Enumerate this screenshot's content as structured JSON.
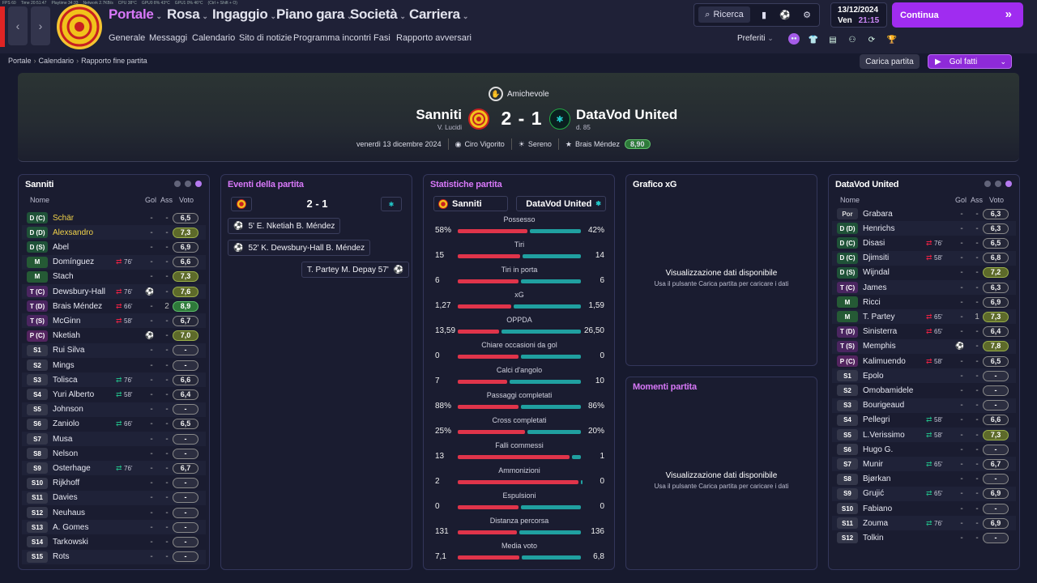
{
  "system": {
    "fps": "FPS 60",
    "time": "Time 20:51:47",
    "playtime": "Playtime 34:33",
    "network": "Network 2.7KB/s",
    "cpu": "CPU 38°C",
    "gpu": "GPU0 8% 43°C",
    "gpu1": "GPU1 0% 46°C",
    "hint": "(Ctrl + Shift + O)"
  },
  "nav": {
    "main": [
      {
        "label": "Portale",
        "active": true
      },
      {
        "label": "Rosa"
      },
      {
        "label": "Ingaggio"
      },
      {
        "label": "Piano gara"
      },
      {
        "label": "Società"
      },
      {
        "label": "Carriera"
      }
    ],
    "sub": [
      "Generale",
      "Messaggi",
      "Calendario",
      "Sito di notizie",
      "Programma incontri",
      "Fasi",
      "Rapporto avversari"
    ],
    "search": "Ricerca",
    "date": "13/12/2024",
    "day": "Ven",
    "clock": "21:15",
    "continue": "Continua",
    "preferiti": "Preferiti"
  },
  "breadcrumb": [
    "Portale",
    "Calendario",
    "Rapporto fine partita"
  ],
  "actions": {
    "carica": "Carica partita",
    "golfatti": "Gol fatti"
  },
  "match": {
    "competition": "Amichevole",
    "home": "Sanniti",
    "home_manager": "V. Lucidi",
    "away": "DataVod United",
    "away_manager": "d. 85",
    "score": "2 - 1",
    "date": "venerdì 13 dicembre 2024",
    "referee": "Ciro Vigorito",
    "weather": "Sereno",
    "motm": "Brais Méndez",
    "motm_rating": "8,90"
  },
  "home_panel": {
    "title": "Sanniti",
    "cols": {
      "name": "Nome",
      "goals": "Gol",
      "assists": "Ass",
      "rating": "Voto"
    },
    "rows": [
      {
        "pos": "D (C)",
        "cls": "d",
        "name": "Schär",
        "y": true,
        "g": "-",
        "a": "-",
        "r": "6,5",
        "rc": "n"
      },
      {
        "pos": "D (D)",
        "cls": "d",
        "name": "Alexsandro",
        "y": true,
        "g": "-",
        "a": "-",
        "r": "7,3",
        "rc": "l"
      },
      {
        "pos": "D (S)",
        "cls": "d",
        "name": "Abel",
        "g": "-",
        "a": "-",
        "r": "6,9",
        "rc": "n"
      },
      {
        "pos": "M",
        "cls": "m",
        "name": "Domínguez",
        "sub": "76'",
        "sd": "out",
        "g": "-",
        "a": "-",
        "r": "6,6",
        "rc": "n"
      },
      {
        "pos": "M",
        "cls": "m",
        "name": "Stach",
        "g": "-",
        "a": "-",
        "r": "7,3",
        "rc": "l"
      },
      {
        "pos": "T (C)",
        "cls": "t",
        "name": "Dewsbury-Hall",
        "sub": "76'",
        "sd": "out",
        "goal": true,
        "a": "-",
        "r": "7,6",
        "rc": "l"
      },
      {
        "pos": "T (D)",
        "cls": "t",
        "name": "Brais Méndez",
        "sub": "66'",
        "sd": "out",
        "g": "-",
        "a": "2",
        "r": "8,9",
        "rc": "h"
      },
      {
        "pos": "T (S)",
        "cls": "t",
        "name": "McGinn",
        "sub": "58'",
        "sd": "out",
        "g": "-",
        "a": "-",
        "r": "6,7",
        "rc": "n"
      },
      {
        "pos": "P (C)",
        "cls": "p",
        "name": "Nketiah",
        "goal": true,
        "a": "-",
        "r": "7,0",
        "rc": "l"
      },
      {
        "pos": "S1",
        "cls": "s",
        "name": "Rui Silva",
        "g": "-",
        "a": "-",
        "r": "-",
        "rc": "e"
      },
      {
        "pos": "S2",
        "cls": "s",
        "name": "Mings",
        "g": "-",
        "a": "-",
        "r": "-",
        "rc": "e"
      },
      {
        "pos": "S3",
        "cls": "s",
        "name": "Tolisca",
        "sub": "76'",
        "sd": "in",
        "g": "-",
        "a": "-",
        "r": "6,6",
        "rc": "n"
      },
      {
        "pos": "S4",
        "cls": "s",
        "name": "Yuri Alberto",
        "sub": "58'",
        "sd": "in",
        "g": "-",
        "a": "-",
        "r": "6,4",
        "rc": "n"
      },
      {
        "pos": "S5",
        "cls": "s",
        "name": "Johnson",
        "g": "-",
        "a": "-",
        "r": "-",
        "rc": "e"
      },
      {
        "pos": "S6",
        "cls": "s",
        "name": "Zaniolo",
        "sub": "66'",
        "sd": "in",
        "g": "-",
        "a": "-",
        "r": "6,5",
        "rc": "n"
      },
      {
        "pos": "S7",
        "cls": "s",
        "name": "Musa",
        "g": "-",
        "a": "-",
        "r": "-",
        "rc": "e"
      },
      {
        "pos": "S8",
        "cls": "s",
        "name": "Nelson",
        "g": "-",
        "a": "-",
        "r": "-",
        "rc": "e"
      },
      {
        "pos": "S9",
        "cls": "s",
        "name": "Osterhage",
        "sub": "76'",
        "sd": "in",
        "g": "-",
        "a": "-",
        "r": "6,7",
        "rc": "n"
      },
      {
        "pos": "S10",
        "cls": "s",
        "name": "Rijkhoff",
        "g": "-",
        "a": "-",
        "r": "-",
        "rc": "e"
      },
      {
        "pos": "S11",
        "cls": "s",
        "name": "Davies",
        "g": "-",
        "a": "-",
        "r": "-",
        "rc": "e"
      },
      {
        "pos": "S12",
        "cls": "s",
        "name": "Neuhaus",
        "g": "-",
        "a": "-",
        "r": "-",
        "rc": "e"
      },
      {
        "pos": "S13",
        "cls": "s",
        "name": "A. Gomes",
        "g": "-",
        "a": "-",
        "r": "-",
        "rc": "e"
      },
      {
        "pos": "S14",
        "cls": "s",
        "name": "Tarkowski",
        "g": "-",
        "a": "-",
        "r": "-",
        "rc": "e"
      },
      {
        "pos": "S15",
        "cls": "s",
        "name": "Rots",
        "g": "-",
        "a": "-",
        "r": "-",
        "rc": "e"
      }
    ]
  },
  "events": {
    "title": "Eventi della partita",
    "score": "2 - 1",
    "items": [
      {
        "side": "home",
        "text": "5' E. Nketiah B. Méndez"
      },
      {
        "side": "home",
        "text": "52' K. Dewsbury-Hall B. Méndez"
      },
      {
        "side": "away",
        "text": "T. Partey M. Depay 57'"
      }
    ]
  },
  "stats": {
    "title": "Statistiche partita",
    "home": "Sanniti",
    "away": "DataVod United",
    "rows": [
      {
        "label": "Possesso",
        "h": "58%",
        "a": "42%",
        "hv": 58,
        "av": 42
      },
      {
        "label": "Tiri",
        "h": "15",
        "a": "14",
        "hv": 15,
        "av": 14
      },
      {
        "label": "Tiri in porta",
        "h": "6",
        "a": "6",
        "hv": 6,
        "av": 6
      },
      {
        "label": "xG",
        "h": "1,27",
        "a": "1,59",
        "hv": 1.27,
        "av": 1.59
      },
      {
        "label": "OPPDA",
        "h": "13,59",
        "a": "26,50",
        "hv": 13.59,
        "av": 26.5
      },
      {
        "label": "Chiare occasioni da gol",
        "h": "0",
        "a": "0",
        "hv": 0,
        "av": 0
      },
      {
        "label": "Calci d'angolo",
        "h": "7",
        "a": "10",
        "hv": 7,
        "av": 10
      },
      {
        "label": "Passaggi completati",
        "h": "88%",
        "a": "86%",
        "hv": 88,
        "av": 86
      },
      {
        "label": "Cross completati",
        "h": "25%",
        "a": "20%",
        "hv": 25,
        "av": 20
      },
      {
        "label": "Falli commessi",
        "h": "13",
        "a": "1",
        "hv": 13,
        "av": 1
      },
      {
        "label": "Ammonizioni",
        "h": "2",
        "a": "0",
        "hv": 2,
        "av": 0
      },
      {
        "label": "Espulsioni",
        "h": "0",
        "a": "0",
        "hv": 0,
        "av": 0
      },
      {
        "label": "Distanza percorsa",
        "h": "131",
        "a": "136",
        "hv": 131,
        "av": 136
      },
      {
        "label": "Media voto",
        "h": "7,1",
        "a": "6,8",
        "hv": 7.1,
        "av": 6.8
      }
    ]
  },
  "xg": {
    "title": "Grafico xG",
    "msg": "Visualizzazione dati disponibile",
    "hint": "Usa il pulsante Carica partita per caricare i dati"
  },
  "moments": {
    "title": "Momenti partita",
    "msg": "Visualizzazione dati disponibile",
    "hint": "Usa il pulsante Carica partita per caricare i dati"
  },
  "away_panel": {
    "title": "DataVod United",
    "cols": {
      "name": "Nome",
      "goals": "Gol",
      "assists": "Ass",
      "rating": "Voto"
    },
    "rows": [
      {
        "pos": "Por",
        "cls": "g",
        "name": "Grabara",
        "g": "-",
        "a": "-",
        "r": "6,3",
        "rc": "n"
      },
      {
        "pos": "D (D)",
        "cls": "d",
        "name": "Henrichs",
        "g": "-",
        "a": "-",
        "r": "6,3",
        "rc": "n"
      },
      {
        "pos": "D (C)",
        "cls": "d",
        "name": "Disasi",
        "sub": "76'",
        "sd": "out",
        "g": "-",
        "a": "-",
        "r": "6,5",
        "rc": "n"
      },
      {
        "pos": "D (C)",
        "cls": "d",
        "name": "Djimsiti",
        "sub": "58'",
        "sd": "out",
        "g": "-",
        "a": "-",
        "r": "6,8",
        "rc": "n"
      },
      {
        "pos": "D (S)",
        "cls": "d",
        "name": "Wijndal",
        "g": "-",
        "a": "-",
        "r": "7,2",
        "rc": "l"
      },
      {
        "pos": "T (C)",
        "cls": "t",
        "name": "James",
        "g": "-",
        "a": "-",
        "r": "6,3",
        "rc": "n"
      },
      {
        "pos": "M",
        "cls": "m",
        "name": "Ricci",
        "g": "-",
        "a": "-",
        "r": "6,9",
        "rc": "n"
      },
      {
        "pos": "M",
        "cls": "m",
        "name": "T. Partey",
        "sub": "65'",
        "sd": "out",
        "g": "-",
        "a": "1",
        "r": "7,3",
        "rc": "l"
      },
      {
        "pos": "T (D)",
        "cls": "t",
        "name": "Sinisterra",
        "sub": "65'",
        "sd": "out",
        "g": "-",
        "a": "-",
        "r": "6,4",
        "rc": "n"
      },
      {
        "pos": "T (S)",
        "cls": "t",
        "name": "Memphis",
        "goal": true,
        "a": "-",
        "r": "7,8",
        "rc": "l"
      },
      {
        "pos": "P (C)",
        "cls": "p",
        "name": "Kalimuendo",
        "sub": "58'",
        "sd": "out",
        "g": "-",
        "a": "-",
        "r": "6,5",
        "rc": "n"
      },
      {
        "pos": "S1",
        "cls": "s",
        "name": "Epolo",
        "g": "-",
        "a": "-",
        "r": "-",
        "rc": "e"
      },
      {
        "pos": "S2",
        "cls": "s",
        "name": "Omobamidele",
        "g": "-",
        "a": "-",
        "r": "-",
        "rc": "e"
      },
      {
        "pos": "S3",
        "cls": "s",
        "name": "Bourigeaud",
        "g": "-",
        "a": "-",
        "r": "-",
        "rc": "e"
      },
      {
        "pos": "S4",
        "cls": "s",
        "name": "Pellegri",
        "sub": "58'",
        "sd": "in",
        "g": "-",
        "a": "-",
        "r": "6,6",
        "rc": "n"
      },
      {
        "pos": "S5",
        "cls": "s",
        "name": "L.Verissimo",
        "sub": "58'",
        "sd": "in",
        "g": "-",
        "a": "-",
        "r": "7,3",
        "rc": "l"
      },
      {
        "pos": "S6",
        "cls": "s",
        "name": "Hugo G.",
        "g": "-",
        "a": "-",
        "r": "-",
        "rc": "e"
      },
      {
        "pos": "S7",
        "cls": "s",
        "name": "Munir",
        "sub": "65'",
        "sd": "in",
        "g": "-",
        "a": "-",
        "r": "6,7",
        "rc": "n"
      },
      {
        "pos": "S8",
        "cls": "s",
        "name": "Bjørkan",
        "g": "-",
        "a": "-",
        "r": "-",
        "rc": "e"
      },
      {
        "pos": "S9",
        "cls": "s",
        "name": "Grujić",
        "sub": "65'",
        "sd": "in",
        "g": "-",
        "a": "-",
        "r": "6,9",
        "rc": "n"
      },
      {
        "pos": "S10",
        "cls": "s",
        "name": "Fabiano",
        "g": "-",
        "a": "-",
        "r": "-",
        "rc": "e"
      },
      {
        "pos": "S11",
        "cls": "s",
        "name": "Zouma",
        "sub": "76'",
        "sd": "in",
        "g": "-",
        "a": "-",
        "r": "6,9",
        "rc": "n"
      },
      {
        "pos": "S12",
        "cls": "s",
        "name": "Tolkin",
        "g": "-",
        "a": "-",
        "r": "-",
        "rc": "e"
      }
    ]
  }
}
